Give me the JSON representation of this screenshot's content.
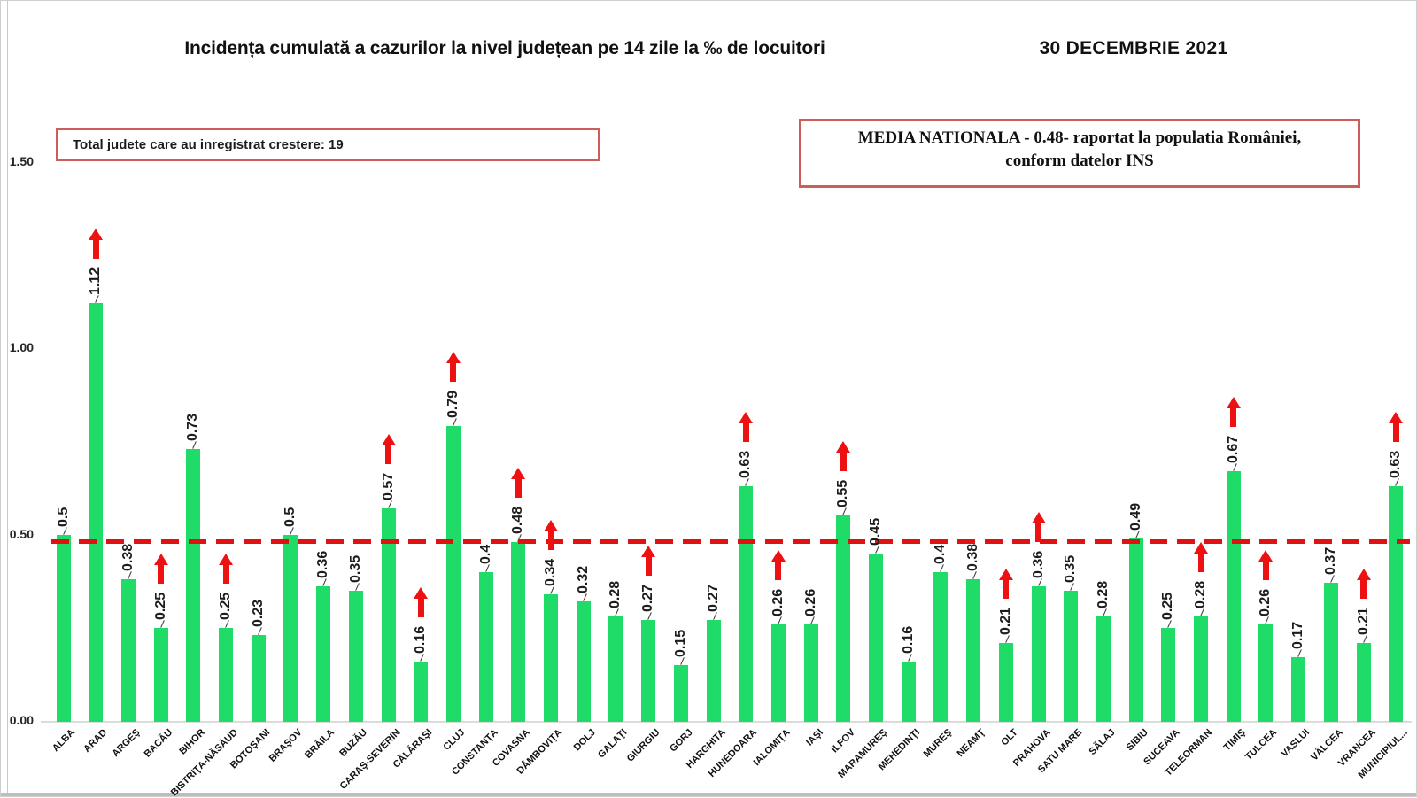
{
  "header": {
    "title": "Incidența cumulată a cazurilor la nivel județean pe 14 zile la ‰ de locuitori",
    "date": "30 DECEMBRIE 2021"
  },
  "info_boxes": {
    "growth_note": "Total judete care au inregistrat crestere: 19",
    "national_line1": "MEDIA NATIONALA - 0.48-  raportat la populatia României,",
    "national_line2": "conform datelor INS"
  },
  "chart_data": {
    "type": "bar",
    "title": "Incidența cumulată a cazurilor la nivel județean pe 14 zile la ‰ de locuitori",
    "xlabel": "",
    "ylabel": "",
    "ylim": [
      0,
      1.5
    ],
    "grid": false,
    "legend": false,
    "national_average": 0.48,
    "counties_with_increase_total": 19,
    "bar_color": "#1fdc68",
    "increase_arrow_color": "#ee1111",
    "average_line_color": "#e01111",
    "yticks": [
      {
        "label": "1.50",
        "v": 1.5
      },
      {
        "label": "1.00",
        "v": 1.0
      },
      {
        "label": "0.50",
        "v": 0.5
      },
      {
        "label": "0.00",
        "v": 0.0
      }
    ],
    "counties": [
      {
        "name": "ALBA",
        "value": 0.5,
        "up": false
      },
      {
        "name": "ARAD",
        "value": 1.12,
        "up": true
      },
      {
        "name": "ARGEŞ",
        "value": 0.38,
        "up": false
      },
      {
        "name": "BACĂU",
        "value": 0.25,
        "up": true
      },
      {
        "name": "BIHOR",
        "value": 0.73,
        "up": false
      },
      {
        "name": "BISTRIŢA-NĂSĂUD",
        "value": 0.25,
        "up": true
      },
      {
        "name": "BOTOŞANI",
        "value": 0.23,
        "up": false
      },
      {
        "name": "BRAŞOV",
        "value": 0.5,
        "up": false
      },
      {
        "name": "BRĂILA",
        "value": 0.36,
        "up": false
      },
      {
        "name": "BUZĂU",
        "value": 0.35,
        "up": false
      },
      {
        "name": "CARAŞ-SEVERIN",
        "value": 0.57,
        "up": true
      },
      {
        "name": "CĂLĂRAŞI",
        "value": 0.16,
        "up": true
      },
      {
        "name": "CLUJ",
        "value": 0.79,
        "up": true
      },
      {
        "name": "CONSTANŢA",
        "value": 0.4,
        "up": false
      },
      {
        "name": "COVASNA",
        "value": 0.48,
        "up": true
      },
      {
        "name": "DÂMBOVIŢA",
        "value": 0.34,
        "up": true
      },
      {
        "name": "DOLJ",
        "value": 0.32,
        "up": false
      },
      {
        "name": "GALAŢI",
        "value": 0.28,
        "up": false
      },
      {
        "name": "GIURGIU",
        "value": 0.27,
        "up": true
      },
      {
        "name": "GORJ",
        "value": 0.15,
        "up": false
      },
      {
        "name": "HARGHITA",
        "value": 0.27,
        "up": false
      },
      {
        "name": "HUNEDOARA",
        "value": 0.63,
        "up": true
      },
      {
        "name": "IALOMIŢA",
        "value": 0.26,
        "up": true
      },
      {
        "name": "IAŞI",
        "value": 0.26,
        "up": false
      },
      {
        "name": "ILFOV",
        "value": 0.55,
        "up": true
      },
      {
        "name": "MARAMUREŞ",
        "value": 0.45,
        "up": false
      },
      {
        "name": "MEHEDINŢI",
        "value": 0.16,
        "up": false
      },
      {
        "name": "MUREŞ",
        "value": 0.4,
        "up": false
      },
      {
        "name": "NEAMŢ",
        "value": 0.38,
        "up": false
      },
      {
        "name": "OLT",
        "value": 0.21,
        "up": true
      },
      {
        "name": "PRAHOVA",
        "value": 0.36,
        "up": true
      },
      {
        "name": "SATU MARE",
        "value": 0.35,
        "up": false
      },
      {
        "name": "SĂLAJ",
        "value": 0.28,
        "up": false
      },
      {
        "name": "SIBIU",
        "value": 0.49,
        "up": false
      },
      {
        "name": "SUCEAVA",
        "value": 0.25,
        "up": false
      },
      {
        "name": "TELEORMAN",
        "value": 0.28,
        "up": true
      },
      {
        "name": "TIMIŞ",
        "value": 0.67,
        "up": true
      },
      {
        "name": "TULCEA",
        "value": 0.26,
        "up": true
      },
      {
        "name": "VASLUI",
        "value": 0.17,
        "up": false
      },
      {
        "name": "VÂLCEA",
        "value": 0.37,
        "up": false
      },
      {
        "name": "VRANCEA",
        "value": 0.21,
        "up": true
      },
      {
        "name": "MUNICIPIUL...",
        "value": 0.63,
        "up": true
      }
    ]
  }
}
